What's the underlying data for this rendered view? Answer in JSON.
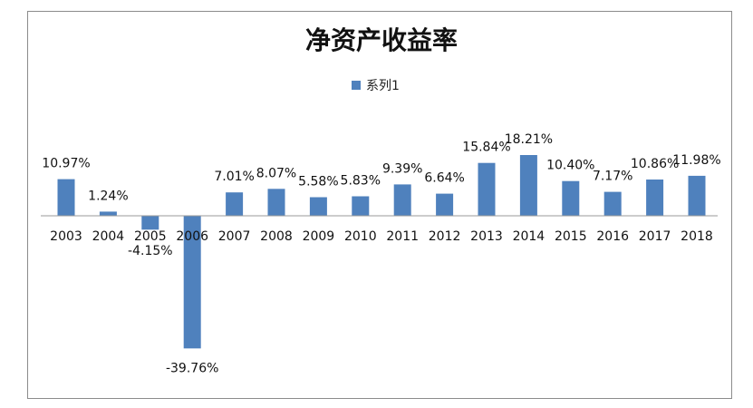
{
  "chart_data": {
    "type": "bar",
    "title": "净资产收益率",
    "xlabel": "",
    "ylabel": "",
    "legend_position": "top",
    "grid": false,
    "ylim": [
      -45,
      20
    ],
    "categories": [
      "2003",
      "2004",
      "2005",
      "2006",
      "2007",
      "2008",
      "2009",
      "2010",
      "2011",
      "2012",
      "2013",
      "2014",
      "2015",
      "2016",
      "2017",
      "2018"
    ],
    "series": [
      {
        "name": "系列1",
        "color": "#4f81bd",
        "values": [
          10.97,
          1.24,
          -4.15,
          -39.76,
          7.01,
          8.07,
          5.58,
          5.83,
          9.39,
          6.64,
          15.84,
          18.21,
          10.4,
          7.17,
          10.86,
          11.98
        ],
        "labels": [
          "10.97%",
          "1.24%",
          "-4.15%",
          "-39.76%",
          "7.01%",
          "8.07%",
          "5.58%",
          "5.83%",
          "9.39%",
          "6.64%",
          "15.84%",
          "18.21%",
          "10.40%",
          "7.17%",
          "10.86%",
          "11.98%"
        ]
      }
    ]
  }
}
